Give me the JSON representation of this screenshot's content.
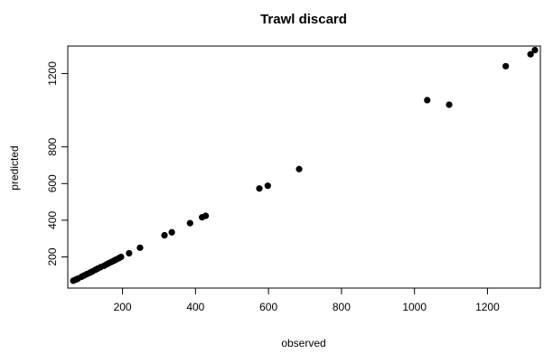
{
  "chart_data": {
    "type": "scatter",
    "title": "Trawl discard",
    "xlabel": "observed",
    "ylabel": "predicted",
    "xlim": [
      50,
      1345
    ],
    "ylim": [
      30,
      1350
    ],
    "xticks": [
      200,
      400,
      600,
      800,
      1000,
      1200
    ],
    "xtick_labels": [
      "200",
      "400",
      "600",
      "800",
      "1000",
      "1200"
    ],
    "yticks": [
      200,
      400,
      600,
      800,
      1200
    ],
    "ytick_labels": [
      "200",
      "400",
      "600",
      "800",
      "1200"
    ],
    "grid": false,
    "marker_color": "#000000",
    "points": [
      {
        "x": 65,
        "y": 70
      },
      {
        "x": 72,
        "y": 76
      },
      {
        "x": 78,
        "y": 82
      },
      {
        "x": 88,
        "y": 92
      },
      {
        "x": 95,
        "y": 99
      },
      {
        "x": 102,
        "y": 106
      },
      {
        "x": 110,
        "y": 113
      },
      {
        "x": 117,
        "y": 120
      },
      {
        "x": 125,
        "y": 129
      },
      {
        "x": 132,
        "y": 136
      },
      {
        "x": 140,
        "y": 144
      },
      {
        "x": 150,
        "y": 152
      },
      {
        "x": 157,
        "y": 160
      },
      {
        "x": 163,
        "y": 166
      },
      {
        "x": 170,
        "y": 173
      },
      {
        "x": 177,
        "y": 180
      },
      {
        "x": 183,
        "y": 186
      },
      {
        "x": 190,
        "y": 193
      },
      {
        "x": 196,
        "y": 200
      },
      {
        "x": 218,
        "y": 220
      },
      {
        "x": 248,
        "y": 250
      },
      {
        "x": 315,
        "y": 318
      },
      {
        "x": 335,
        "y": 334
      },
      {
        "x": 385,
        "y": 384
      },
      {
        "x": 418,
        "y": 416
      },
      {
        "x": 428,
        "y": 424
      },
      {
        "x": 575,
        "y": 573
      },
      {
        "x": 598,
        "y": 588
      },
      {
        "x": 684,
        "y": 679
      },
      {
        "x": 1035,
        "y": 1055
      },
      {
        "x": 1095,
        "y": 1030
      },
      {
        "x": 1250,
        "y": 1240
      },
      {
        "x": 1318,
        "y": 1305
      },
      {
        "x": 1330,
        "y": 1328
      }
    ]
  }
}
